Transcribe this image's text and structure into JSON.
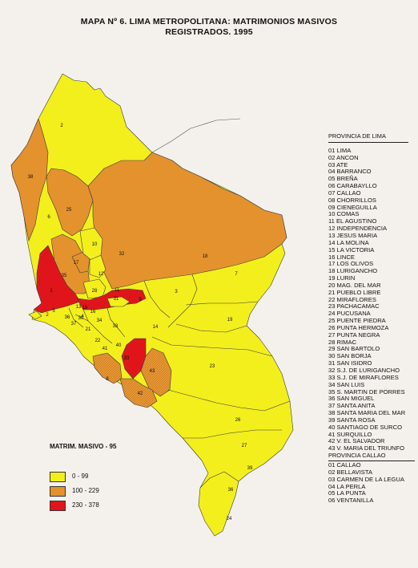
{
  "title": {
    "line1": "MAPA Nº 6.  LIMA METROPOLITANA: MATRIMONIOS MASIVOS",
    "line2": "REGISTRADOS.  1995"
  },
  "legend": {
    "title": "MATRIM. MASIVO - 95",
    "ranges": [
      {
        "label": "0   -   99",
        "color": "#f3ef1d"
      },
      {
        "label": "100   -   229",
        "color": "#e4922e"
      },
      {
        "label": "230   -   378",
        "color": "#e0151b"
      }
    ]
  },
  "provincia_lima": {
    "header": "PROVINCIA DE LIMA",
    "items": [
      "01  LIMA",
      "02  ANCON",
      "03  ATE",
      "04  BARRANCO",
      "05  BREÑA",
      "06  CARABAYLLO",
      "07  CALLAO",
      "08  CHORRILLOS",
      "09  CIENEGUILLA",
      "10  COMAS",
      "11  EL AGUSTINO",
      "12  INDEPENDENCIA",
      "13  JESUS MARIA",
      "14  LA MOLINA",
      "15  LA VICTORIA",
      "16  LINCE",
      "17  LOS OLIVOS",
      "18  LURIGANCHO",
      "19  LURIN",
      "20  MAG. DEL MAR",
      "21  PUEBLO LIBRE",
      "22  MIRAFLORES",
      "23  PACHACAMAC",
      "24  PUCUSANA",
      "25  PUENTE PIEDRA",
      "26  PUNTA HERMOZA",
      "27  PUNTA NEGRA",
      "28  RIMAC",
      "29  SAN BARTOLO",
      "30  SAN BORJA",
      "31  SAN ISIDRO",
      "32  S.J. DE LURIGANCHO",
      "33  S.J. DE MIRAFLORES",
      "34  SAN LUIS",
      "35  S. MARTIN DE PORRES",
      "36  SAN MIGUEL",
      "37  SANTA ANITA",
      "38  SANTA MARIA DEL MAR",
      "39  SANTA ROSA",
      "40  SANTIAGO DE SURCO",
      "41  SURQUILLO",
      "42  V. EL SALVADOR",
      "43  V. MARIA DEL TRIUNFO"
    ]
  },
  "provincia_callao": {
    "header": "PROVINCIA CALLAO",
    "items": [
      "01  CALLAO",
      "02  BELLAVISTA",
      "03  CARMEN DE LA LEGUA",
      "04  LA PERLA",
      "05  LA PUNTA",
      "06  VENTANILLA"
    ]
  },
  "map_labels": [
    "2",
    "38",
    "6",
    "25",
    "10",
    "32",
    "18",
    "7",
    "12",
    "17",
    "35",
    "28",
    "31",
    "1",
    "11",
    "3",
    "9",
    "5",
    "2",
    "13",
    "15",
    "36",
    "16",
    "37",
    "30",
    "21",
    "33",
    "4",
    "34",
    "14",
    "22",
    "40",
    "41",
    "33",
    "43",
    "23",
    "8",
    "42",
    "19",
    "26",
    "27",
    "39",
    "36",
    "24"
  ],
  "colors": {
    "yellow": "#f3ef1d",
    "orange": "#e4922e",
    "red": "#e0151b",
    "border": "#333333"
  }
}
